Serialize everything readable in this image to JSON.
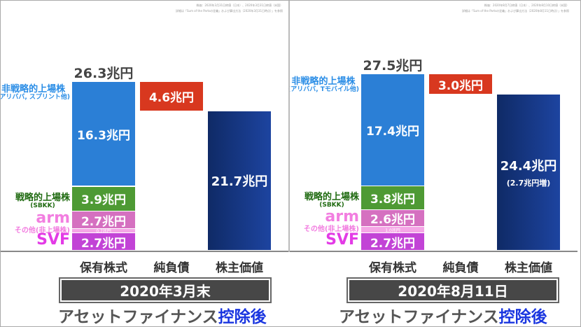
{
  "chart_data": [
    {
      "type": "waterfall",
      "notes": [
        "株価：2020年3月31日終値（日本）、2020年3月31日終値（米国）",
        "詳細は「Sum of the Partsの定義」および算出方法（2020年3月31日時点）」を参照"
      ],
      "categories": [
        "保有株式",
        "純負債",
        "株主価値"
      ],
      "holdings_total": 26.3,
      "holdings_total_label": "26.3兆円",
      "segments": [
        {
          "name": "SVF",
          "value": 2.7,
          "label": "2.7兆円",
          "color": "#c243d6"
        },
        {
          "name": "その他(非上場株)",
          "value": 0.7,
          "label": "0.7兆円",
          "color": "#f5a6e6"
        },
        {
          "name": "arm",
          "value": 2.7,
          "label": "2.7兆円",
          "color": "#d570c0"
        },
        {
          "name": "戦略的上場株",
          "sub": "(SBKK)",
          "value": 3.9,
          "label": "3.9兆円",
          "color": "#4e9a34"
        },
        {
          "name": "非戦略的上場株",
          "sub": "(アリババ, スプリント他)",
          "value": 16.3,
          "label": "16.3兆円",
          "color": "#2b7fd6"
        }
      ],
      "net_debt": {
        "value": 4.6,
        "label": "4.6兆円",
        "color": "#d8381f"
      },
      "equity": {
        "value": 21.7,
        "label": "21.7兆円",
        "sub": "",
        "color": "#16357a"
      },
      "title": "2020年3月末",
      "subtitle_gray": "アセットファイナンス",
      "subtitle_blue": "控除後"
    },
    {
      "type": "waterfall",
      "notes": [
        "株価：2020年8月7日終値（日本）、2020年8月10日終値（米国）",
        "詳細は「Sum of the Partsの定義」および算出方法（2020年8月11日時点）」を参照"
      ],
      "categories": [
        "保有株式",
        "純負債",
        "株主価値"
      ],
      "holdings_total": 27.5,
      "holdings_total_label": "27.5兆円",
      "segments": [
        {
          "name": "SVF",
          "value": 2.7,
          "label": "2.7兆円",
          "color": "#c243d6"
        },
        {
          "name": "その他(非上場株)",
          "value": 1.0,
          "label": "1.0兆円",
          "color": "#f5a6e6"
        },
        {
          "name": "arm",
          "value": 2.6,
          "label": "2.6兆円",
          "color": "#d570c0"
        },
        {
          "name": "戦略的上場株",
          "sub": "(SBKK)",
          "value": 3.8,
          "label": "3.8兆円",
          "color": "#4e9a34"
        },
        {
          "name": "非戦略的上場株",
          "sub": "(アリババ, Tモバイル他)",
          "value": 17.4,
          "label": "17.4兆円",
          "color": "#2b7fd6"
        }
      ],
      "net_debt": {
        "value": 3.0,
        "label": "3.0兆円",
        "color": "#d8381f"
      },
      "equity": {
        "value": 24.4,
        "label": "24.4兆円",
        "sub": "(2.7兆円増)",
        "color": "#16357a"
      },
      "title": "2020年8月11日",
      "subtitle_gray": "アセットファイナンス",
      "subtitle_blue": "控除後"
    }
  ]
}
